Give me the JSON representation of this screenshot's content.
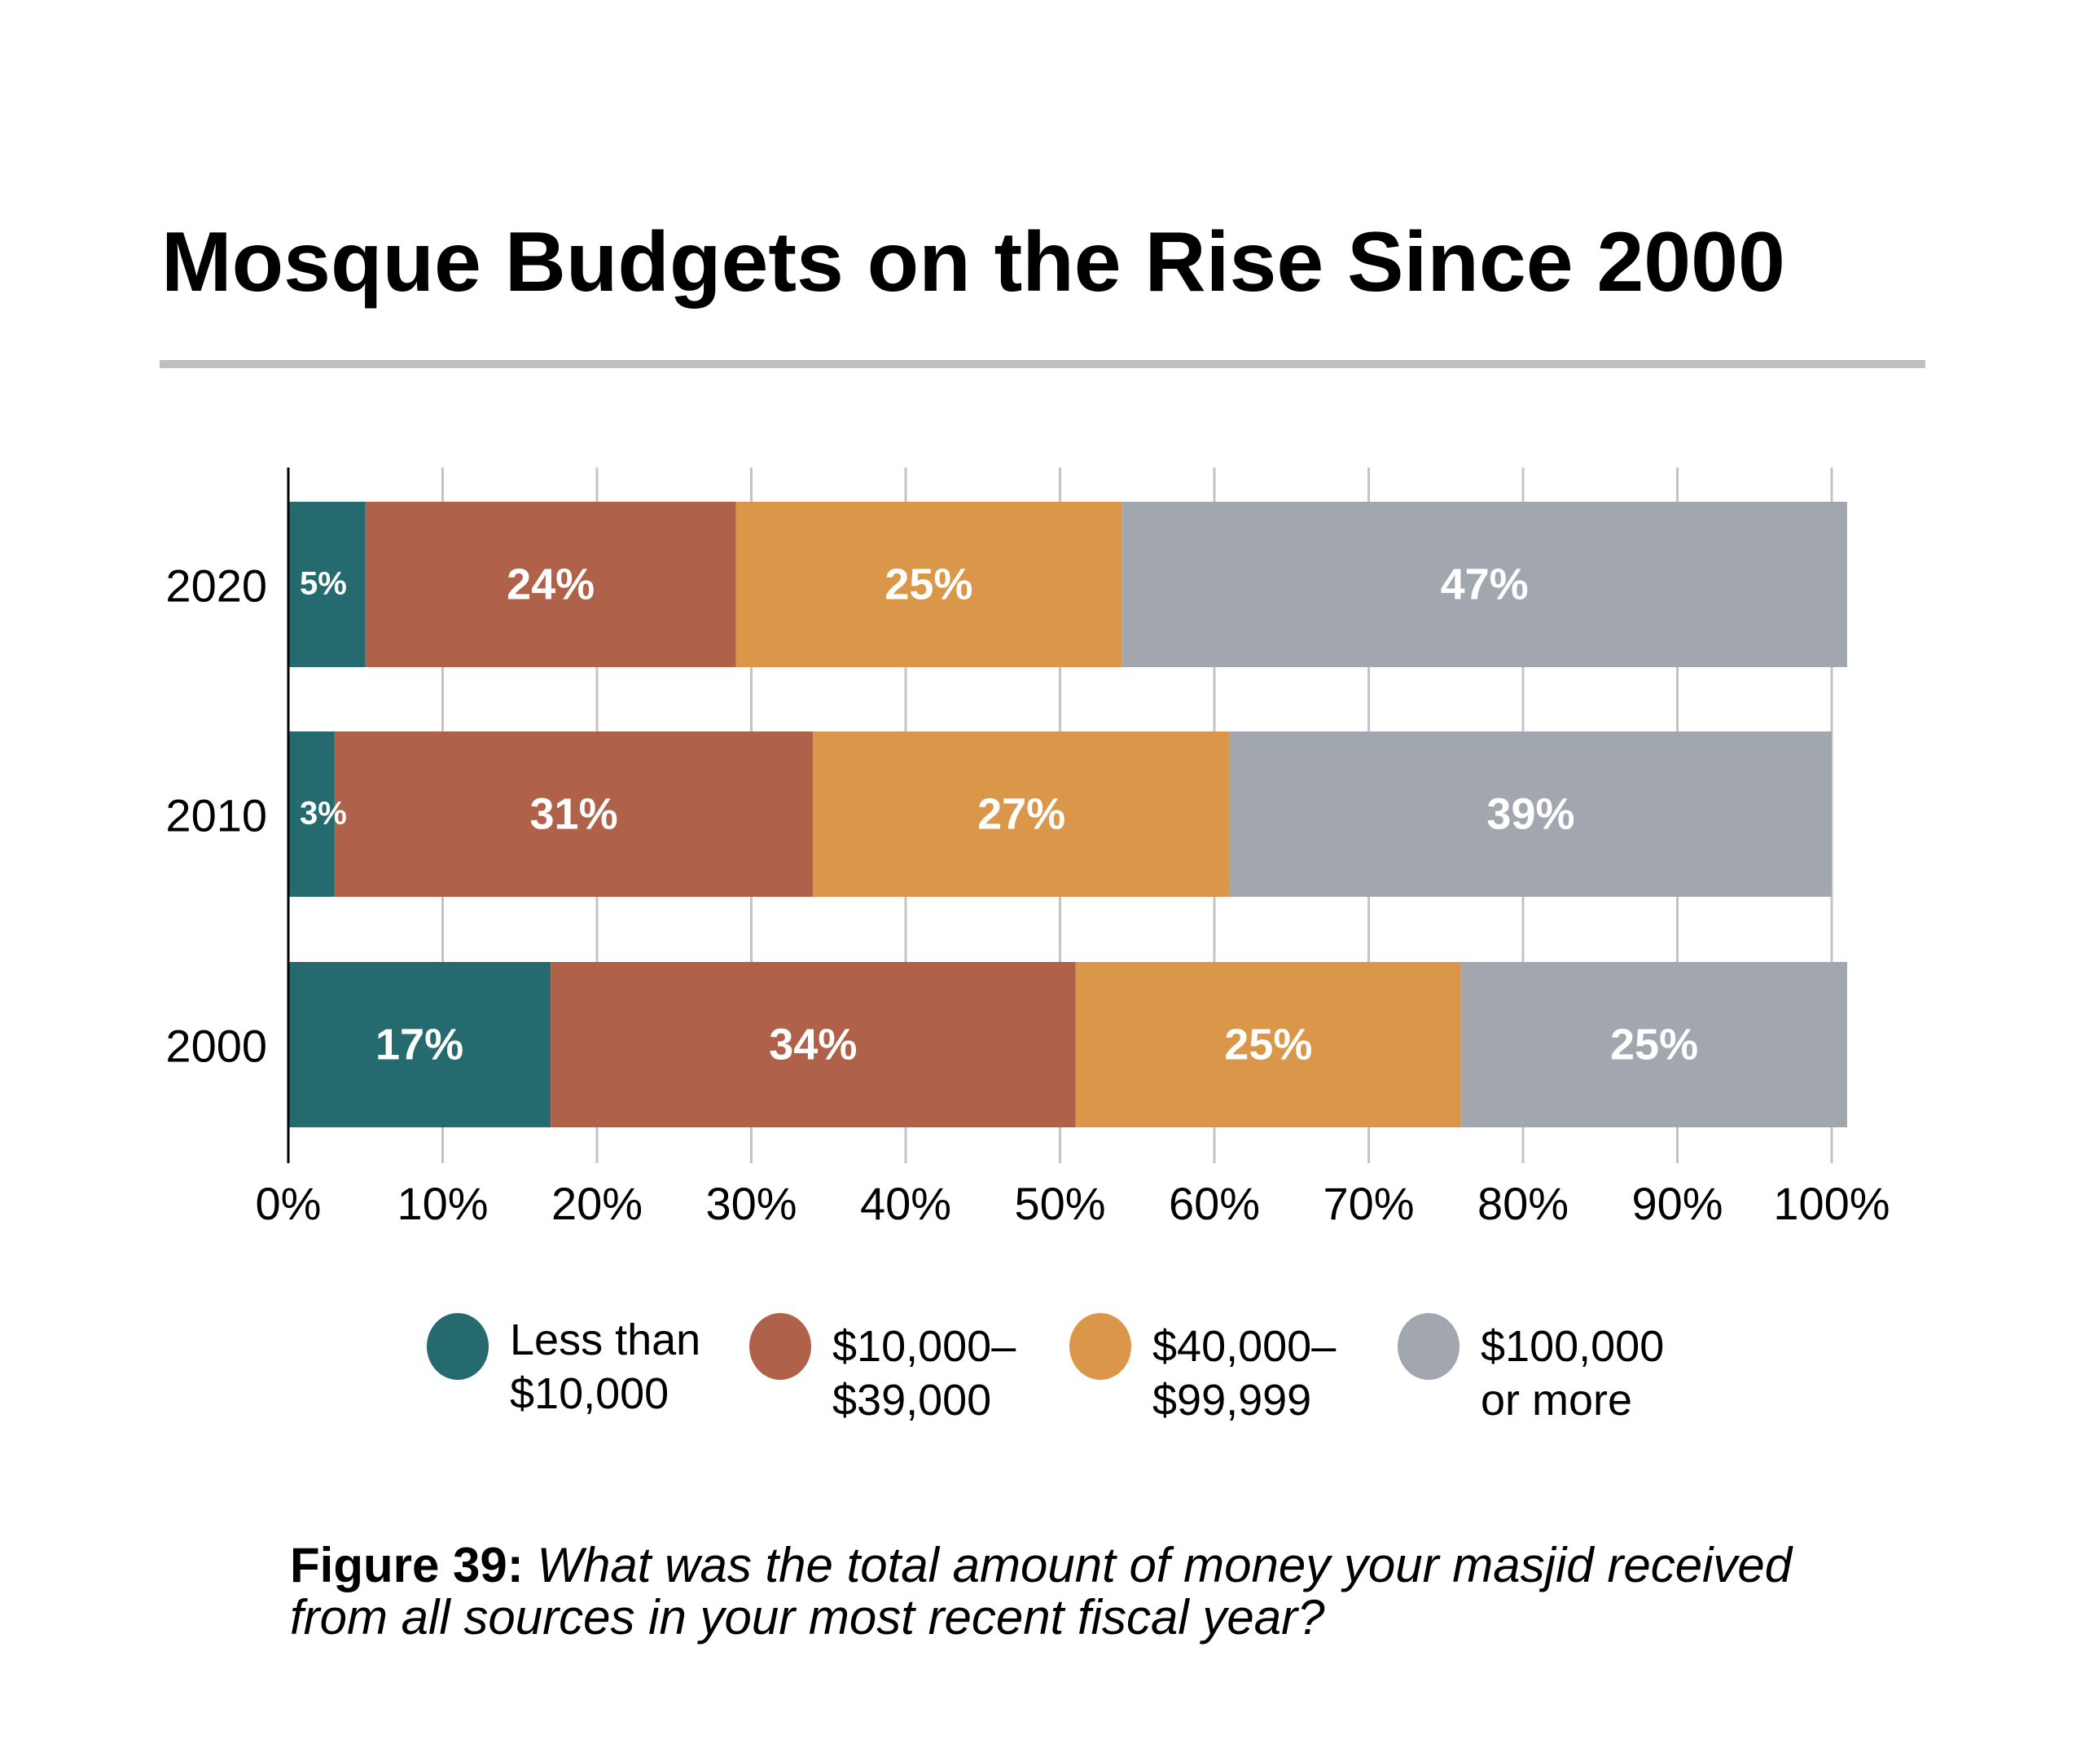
{
  "title": "Mosque Budgets on the Rise Since 2000",
  "caption": {
    "label": "Figure 39:",
    "question_line1": "What was the total amount of money your masjid received",
    "question_line2": "from all sources in your most recent fiscal year?"
  },
  "chart_data": {
    "type": "bar",
    "orientation": "horizontal",
    "stacked": true,
    "title": "Mosque Budgets on the Rise Since 2000",
    "xlabel": "",
    "ylabel": "",
    "xlim": [
      0,
      100
    ],
    "x_ticks": [
      "0%",
      "10%",
      "20%",
      "30%",
      "40%",
      "50%",
      "60%",
      "70%",
      "80%",
      "90%",
      "100%"
    ],
    "grid": true,
    "legend_position": "bottom",
    "categories": [
      "2020",
      "2010",
      "2000"
    ],
    "series": [
      {
        "name": "Less than $10,000",
        "legend_lines": [
          "Less than",
          "$10,000"
        ],
        "color": "#256A6E",
        "values": [
          5,
          3,
          17
        ]
      },
      {
        "name": "$10,000–$39,000",
        "legend_lines": [
          "$10,000–",
          "$39,000"
        ],
        "color": "#B0614A",
        "values": [
          24,
          31,
          34
        ]
      },
      {
        "name": "$40,000–$99,999",
        "legend_lines": [
          "$40,000–",
          "$99,999"
        ],
        "color": "#DB9749",
        "values": [
          25,
          27,
          25
        ]
      },
      {
        "name": "$100,000 or more",
        "legend_lines": [
          "$100,000",
          "or more"
        ],
        "color": "#A2A6AE",
        "values": [
          47,
          39,
          25
        ]
      }
    ],
    "data_labels": [
      [
        "5%",
        "24%",
        "25%",
        "47%"
      ],
      [
        "3%",
        "31%",
        "27%",
        "39%"
      ],
      [
        "17%",
        "34%",
        "25%",
        "25%"
      ]
    ]
  }
}
